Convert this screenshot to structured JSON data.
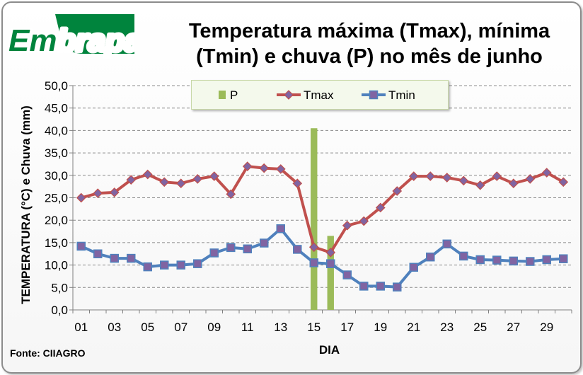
{
  "brand": {
    "logo_text": "Embrapa",
    "logo_color": "#00843d"
  },
  "source": "Fonte: CIIAGRO",
  "chart_data": {
    "type": "bar-line",
    "title_lines": [
      "Temperatura máxima (Tmax), mínima",
      "(Tmin) e chuva (P) no mês de junho"
    ],
    "xlabel": "DIA",
    "ylabel": "TEMPERATURA (°C) e Chuva (mm)",
    "ylim": [
      0,
      50
    ],
    "yticks": [
      "0,0",
      "5,0",
      "10,0",
      "15,0",
      "20,0",
      "25,0",
      "30,0",
      "35,0",
      "40,0",
      "45,0",
      "50,0"
    ],
    "xticks": [
      "01",
      "03",
      "05",
      "07",
      "09",
      "11",
      "13",
      "15",
      "17",
      "19",
      "21",
      "23",
      "25",
      "27",
      "29"
    ],
    "days": [
      1,
      2,
      3,
      4,
      5,
      6,
      7,
      8,
      9,
      10,
      11,
      12,
      13,
      14,
      15,
      16,
      17,
      18,
      19,
      20,
      21,
      22,
      23,
      24,
      25,
      26,
      27,
      28,
      29,
      30
    ],
    "grid": "horizontal dashed",
    "legend_position": "top-center",
    "series": [
      {
        "name": "P",
        "kind": "bar",
        "color": "#9bbb59",
        "values": [
          0,
          0,
          0,
          0,
          0,
          0,
          0,
          0,
          0,
          0,
          0,
          0,
          0,
          0,
          40.5,
          16.5,
          0,
          0,
          0,
          0,
          0,
          0,
          0,
          0,
          0,
          0,
          0,
          0,
          0,
          0
        ]
      },
      {
        "name": "Tmax",
        "kind": "line",
        "marker": "diamond",
        "color": "#c0504d",
        "values": [
          25.0,
          26.0,
          26.2,
          29.0,
          30.2,
          28.5,
          28.2,
          29.2,
          29.8,
          25.8,
          32.0,
          31.6,
          31.4,
          28.2,
          14.0,
          12.8,
          18.8,
          19.8,
          22.8,
          26.5,
          29.8,
          29.8,
          29.5,
          28.8,
          27.8,
          29.8,
          28.2,
          29.2,
          30.6,
          28.5
        ]
      },
      {
        "name": "Tmin",
        "kind": "line",
        "marker": "square",
        "color": "#4f81bd",
        "values": [
          14.2,
          12.5,
          11.5,
          11.5,
          9.6,
          10.0,
          10.0,
          10.3,
          12.7,
          13.9,
          13.6,
          14.9,
          18.1,
          13.5,
          10.5,
          10.3,
          7.8,
          5.3,
          5.3,
          5.1,
          9.5,
          11.8,
          14.7,
          12.0,
          11.2,
          11.1,
          10.9,
          10.8,
          11.2,
          11.4
        ]
      }
    ]
  }
}
